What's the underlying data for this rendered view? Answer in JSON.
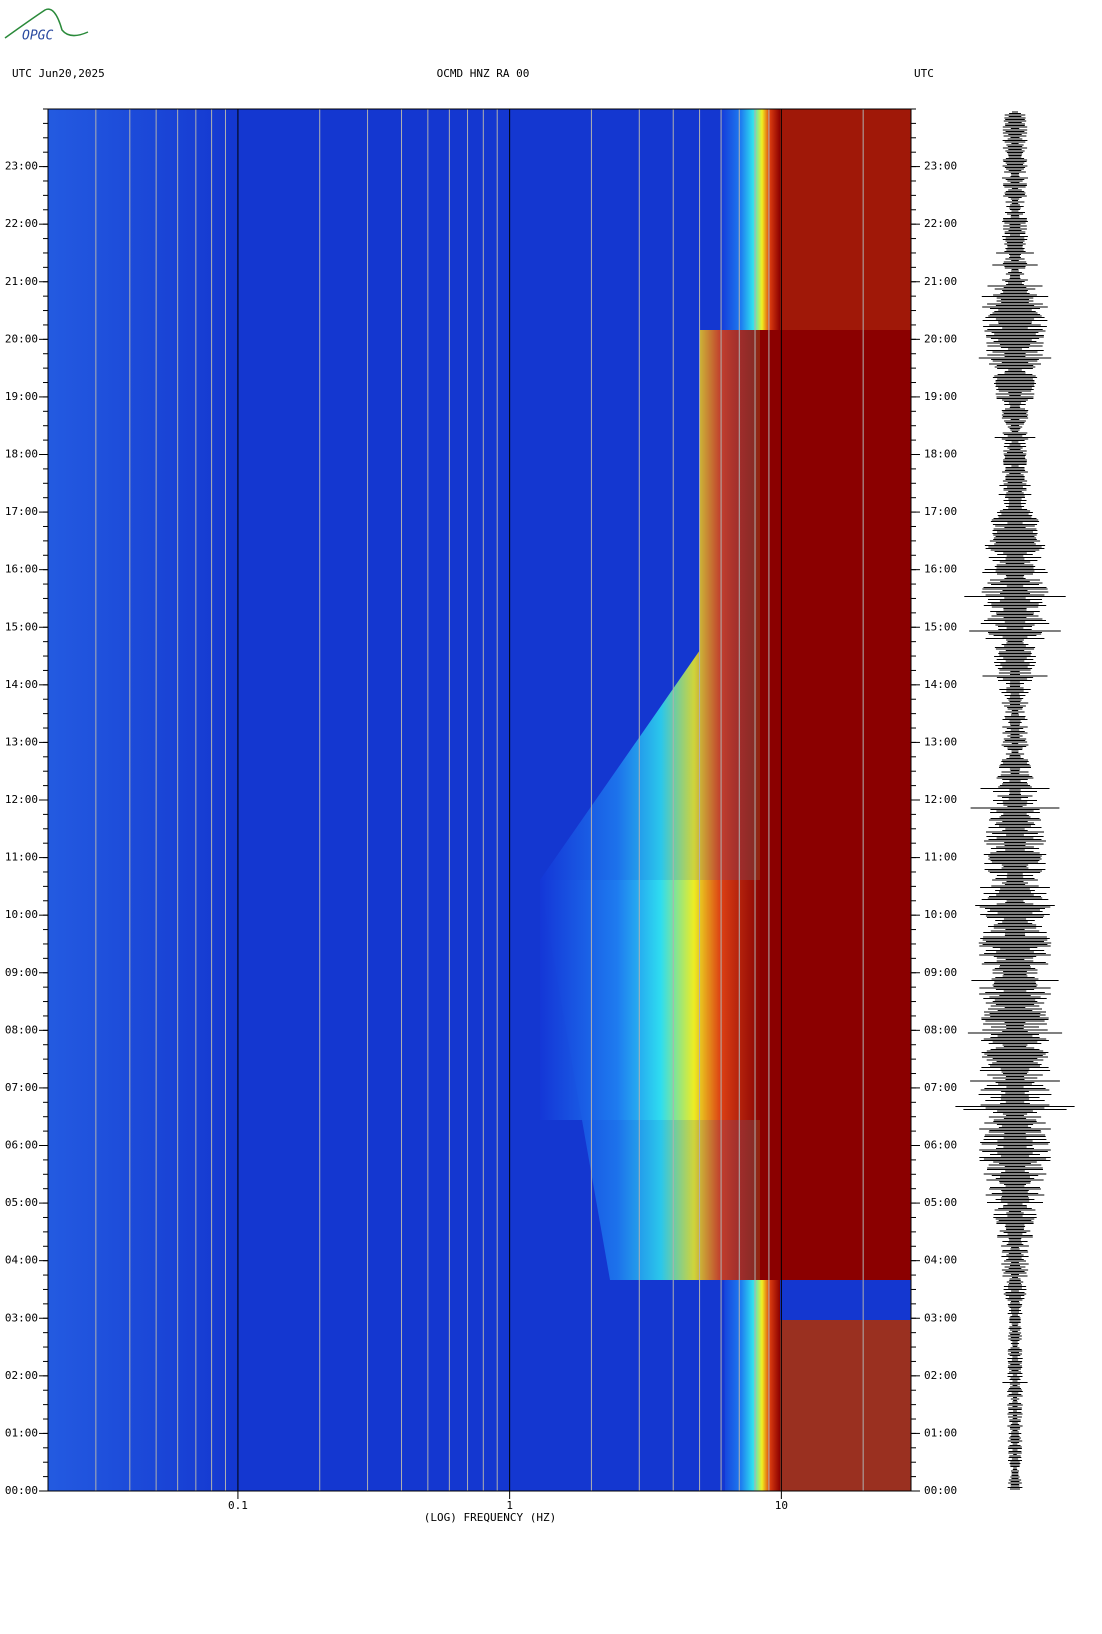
{
  "logo": "OPGC",
  "chart_data": {
    "type": "spectrogram",
    "header_left": "UTC  Jun20,2025",
    "title": "OCMD HNZ RA 00",
    "header_right": "UTC",
    "xlabel": "(LOG) FREQUENCY (HZ)",
    "xscale": "log",
    "xlim": [
      0.02,
      30
    ],
    "xticks": [
      {
        "value": 0.1,
        "label": "0.1"
      },
      1,
      10
    ],
    "ylim": [
      0,
      24
    ],
    "yticks": [
      {
        "value": 0,
        "label": "00:00"
      },
      {
        "value": 1,
        "label": "01:00"
      },
      {
        "value": 2,
        "label": "02:00"
      },
      {
        "value": 3,
        "label": "03:00"
      },
      {
        "value": 4,
        "label": "04:00"
      },
      {
        "value": 5,
        "label": "05:00"
      },
      {
        "value": 6,
        "label": "06:00"
      },
      {
        "value": 7,
        "label": "07:00"
      },
      {
        "value": 8,
        "label": "08:00"
      },
      {
        "value": 9,
        "label": "09:00"
      },
      {
        "value": 10,
        "label": "10:00"
      },
      {
        "value": 11,
        "label": "11:00"
      },
      {
        "value": 12,
        "label": "12:00"
      },
      {
        "value": 13,
        "label": "13:00"
      },
      {
        "value": 14,
        "label": "14:00"
      },
      {
        "value": 15,
        "label": "15:00"
      },
      {
        "value": 16,
        "label": "16:00"
      },
      {
        "value": 17,
        "label": "17:00"
      },
      {
        "value": 18,
        "label": "18:00"
      },
      {
        "value": 19,
        "label": "19:00"
      },
      {
        "value": 20,
        "label": "20:00"
      },
      {
        "value": 21,
        "label": "21:00"
      },
      {
        "value": 22,
        "label": "22:00"
      },
      {
        "value": 23,
        "label": "23:00"
      }
    ]
  }
}
